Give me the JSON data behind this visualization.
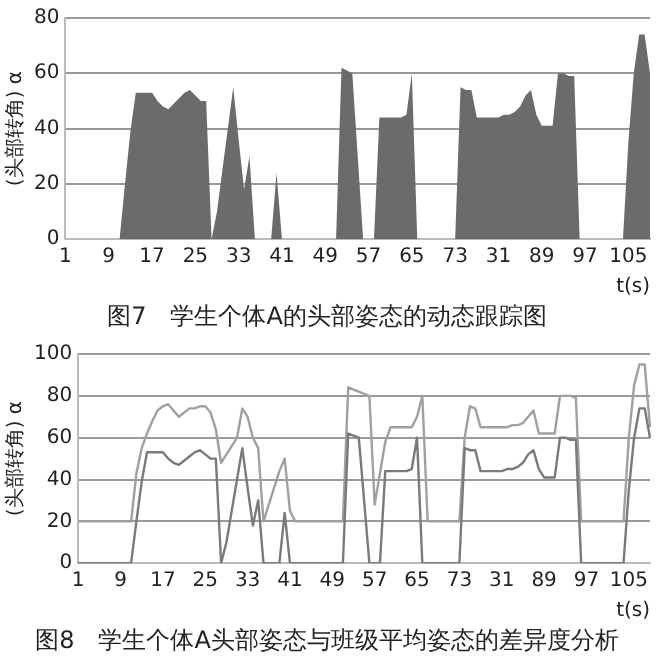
{
  "chart_data": [
    {
      "type": "area",
      "title": "图7　学生个体A的头部姿态的动态跟踪图",
      "xlabel": "t(s)",
      "ylabel": "(头部转角) α",
      "ylim": [
        0,
        80
      ],
      "yticks": [
        0,
        20,
        40,
        60,
        80
      ],
      "grid": "y",
      "legend": false,
      "categories": [
        "1",
        null,
        null,
        null,
        null,
        null,
        null,
        null,
        "9",
        null,
        null,
        null,
        null,
        null,
        null,
        null,
        "17",
        null,
        null,
        null,
        null,
        null,
        null,
        null,
        "25",
        null,
        null,
        null,
        null,
        null,
        null,
        null,
        "33",
        null,
        null,
        null,
        null,
        null,
        null,
        null,
        "41",
        null,
        null,
        null,
        null,
        null,
        null,
        null,
        "49",
        null,
        null,
        null,
        null,
        null,
        null,
        null,
        "57",
        null,
        null,
        null,
        null,
        null,
        null,
        null,
        "65",
        null,
        null,
        null,
        null,
        null,
        null,
        null,
        "73",
        null,
        null,
        null,
        null,
        null,
        null,
        null,
        "31",
        null,
        null,
        null,
        null,
        null,
        null,
        null,
        "89",
        null,
        null,
        null,
        null,
        null,
        null,
        null,
        "97",
        null,
        null,
        null,
        null,
        null,
        null,
        null,
        "105",
        null,
        null,
        null,
        null
      ],
      "series": [
        {
          "color": "#6b6b6b",
          "values": [
            0,
            0,
            0,
            0,
            0,
            0,
            0,
            0,
            0,
            0,
            0,
            20,
            39,
            53,
            53,
            53,
            53,
            50,
            48,
            47,
            49,
            51,
            53,
            54,
            52,
            50,
            50,
            0,
            10,
            25,
            40,
            55,
            36,
            18,
            30,
            0,
            0,
            0,
            0,
            24,
            0,
            0,
            0,
            0,
            0,
            0,
            0,
            0,
            0,
            0,
            0,
            62,
            61,
            60,
            30,
            0,
            0,
            0,
            44,
            44,
            44,
            44,
            44,
            45,
            60,
            0,
            0,
            0,
            0,
            0,
            0,
            0,
            0,
            55,
            54,
            54,
            44,
            44,
            44,
            44,
            44,
            45,
            45,
            46,
            48,
            52,
            54,
            45,
            41,
            41,
            41,
            60,
            60,
            59,
            59,
            0,
            0,
            0,
            0,
            0,
            0,
            0,
            0,
            0,
            35,
            60,
            74,
            74,
            60
          ]
        }
      ]
    },
    {
      "type": "line",
      "title": "图8　学生个体A头部姿态与班级平均姿态的差异度分析",
      "xlabel": "t(s)",
      "ylabel": "(头部转角) α",
      "ylim": [
        0,
        100
      ],
      "yticks": [
        0,
        20,
        40,
        60,
        80,
        100
      ],
      "grid": "y",
      "legend": false,
      "categories": [
        "1",
        null,
        null,
        null,
        null,
        null,
        null,
        null,
        "9",
        null,
        null,
        null,
        null,
        null,
        null,
        null,
        "17",
        null,
        null,
        null,
        null,
        null,
        null,
        null,
        "25",
        null,
        null,
        null,
        null,
        null,
        null,
        null,
        "33",
        null,
        null,
        null,
        null,
        null,
        null,
        null,
        "41",
        null,
        null,
        null,
        null,
        null,
        null,
        null,
        "49",
        null,
        null,
        null,
        null,
        null,
        null,
        null,
        "57",
        null,
        null,
        null,
        null,
        null,
        null,
        null,
        "65",
        null,
        null,
        null,
        null,
        null,
        null,
        null,
        "73",
        null,
        null,
        null,
        null,
        null,
        null,
        null,
        "31",
        null,
        null,
        null,
        null,
        null,
        null,
        null,
        "89",
        null,
        null,
        null,
        null,
        null,
        null,
        null,
        "97",
        null,
        null,
        null,
        null,
        null,
        null,
        null,
        "105",
        null,
        null,
        null,
        null
      ],
      "series": [
        {
          "color": "#7a7a7a",
          "values": [
            0,
            0,
            0,
            0,
            0,
            0,
            0,
            0,
            0,
            0,
            0,
            20,
            39,
            53,
            53,
            53,
            53,
            50,
            48,
            47,
            49,
            51,
            53,
            54,
            52,
            50,
            50,
            0,
            10,
            25,
            40,
            55,
            36,
            18,
            30,
            0,
            0,
            0,
            0,
            24,
            0,
            0,
            0,
            0,
            0,
            0,
            0,
            0,
            0,
            0,
            0,
            62,
            61,
            60,
            30,
            0,
            0,
            0,
            44,
            44,
            44,
            44,
            44,
            45,
            60,
            0,
            0,
            0,
            0,
            0,
            0,
            0,
            0,
            55,
            54,
            54,
            44,
            44,
            44,
            44,
            44,
            45,
            45,
            46,
            48,
            52,
            54,
            45,
            41,
            41,
            41,
            60,
            60,
            59,
            59,
            0,
            0,
            0,
            0,
            0,
            0,
            0,
            0,
            0,
            35,
            60,
            74,
            74,
            60
          ]
        },
        {
          "color": "#a0a0a0",
          "values": [
            20,
            20,
            20,
            20,
            20,
            20,
            20,
            20,
            20,
            20,
            20,
            43,
            55,
            62,
            68,
            73,
            75,
            76,
            73,
            70,
            72,
            74,
            74,
            75,
            75,
            72,
            64,
            48,
            52,
            56,
            60,
            74,
            70,
            60,
            55,
            20,
            28,
            36,
            44,
            50,
            25,
            20,
            20,
            20,
            20,
            20,
            20,
            20,
            20,
            20,
            20,
            84,
            83,
            82,
            81,
            80,
            28,
            43,
            58,
            65,
            65,
            65,
            65,
            65,
            70,
            80,
            20,
            20,
            20,
            20,
            20,
            20,
            20,
            60,
            75,
            74,
            65,
            65,
            65,
            65,
            65,
            65,
            66,
            66,
            67,
            70,
            73,
            62,
            62,
            62,
            62,
            80,
            80,
            80,
            79,
            20,
            20,
            20,
            20,
            20,
            20,
            20,
            20,
            20,
            60,
            85,
            95,
            95,
            65
          ]
        }
      ]
    }
  ]
}
